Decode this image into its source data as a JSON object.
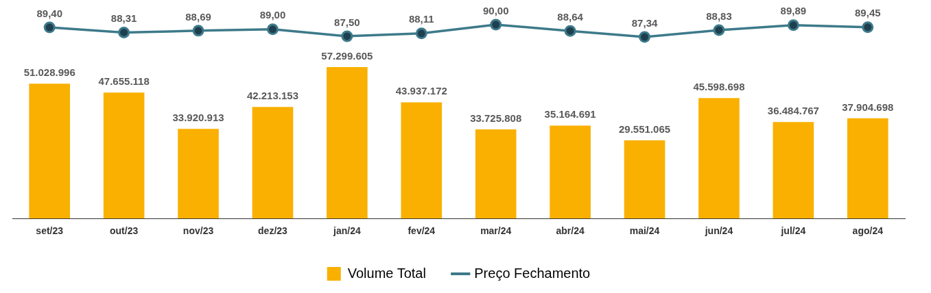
{
  "chart_data": [
    {
      "type": "line",
      "categories": [
        null,
        null,
        null,
        null,
        null,
        null,
        null,
        null,
        null,
        null,
        null,
        null
      ],
      "series": [
        {
          "name": "Preço Fechamento",
          "color": "#3d7a8a",
          "values": [
            89.4,
            88.31,
            88.69,
            89.0,
            87.5,
            88.11,
            90.0,
            88.64,
            87.34,
            88.83,
            89.89,
            89.45
          ],
          "value_labels": [
            "89,40",
            "88,31",
            "88,69",
            "89,00",
            "87,50",
            "88,11",
            "90,00",
            "88,64",
            "87,34",
            "88,83",
            "89,89",
            "89,45"
          ]
        }
      ],
      "tick_labels": false,
      "grid": false,
      "marker": "circle",
      "line_style": "solid"
    },
    {
      "type": "bar",
      "categories": [
        "set/23",
        "out/23",
        "nov/23",
        "dez/23",
        "jan/24",
        "fev/24",
        "mar/24",
        "abr/24",
        "mai/24",
        "jun/24",
        "jul/24",
        "ago/24"
      ],
      "series": [
        {
          "name": "Volume Total",
          "color": "#f9b000",
          "values": [
            51028996,
            47655118,
            33920913,
            42213153,
            57299605,
            43937172,
            33725808,
            35164691,
            29551065,
            45598698,
            36484767,
            37904698
          ],
          "value_labels": [
            "51.028.996",
            "47.655.118",
            "33.920.913",
            "42.213.153",
            "57.299.605",
            "43.937.172",
            "33.725.808",
            "35.164.691",
            "29.551.065",
            "45.598.698",
            "36.484.767",
            "37.904.698"
          ]
        }
      ],
      "tick_labels": "x",
      "grid": false,
      "legend": "bottom"
    }
  ]
}
